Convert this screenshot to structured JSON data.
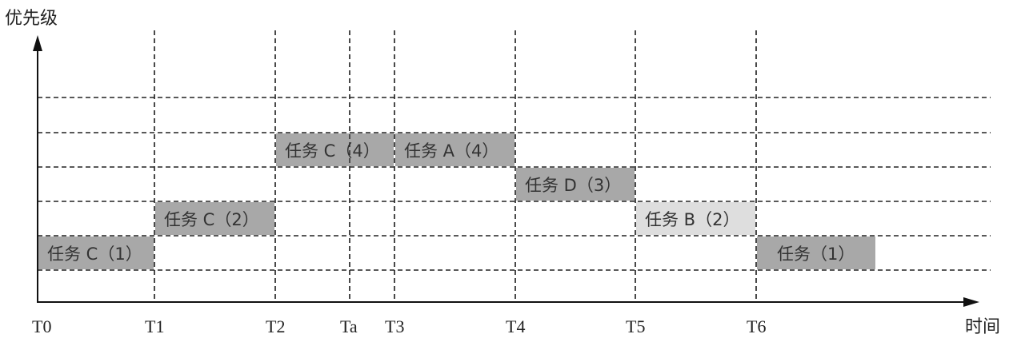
{
  "y_axis_title": "优先级",
  "x_axis_title": "时间",
  "time_marks": [
    "T0",
    "T1",
    "T2",
    "Ta",
    "T3",
    "T4",
    "T5",
    "T6"
  ],
  "tasks": [
    {
      "label": "任务 C（1）",
      "start": "T0",
      "end": "T1",
      "level": 1,
      "color": "#a8a8a8"
    },
    {
      "label": "任务 C（2）",
      "start": "T1",
      "end": "T2",
      "level": 2,
      "color": "#a8a8a8"
    },
    {
      "label": "任务 C（4）",
      "start": "T2",
      "end": "T3",
      "level": 4,
      "color": "#a8a8a8"
    },
    {
      "label": "任务 A（4）",
      "start": "T3",
      "end": "T4",
      "level": 4,
      "color": "#a8a8a8"
    },
    {
      "label": "任务 D（3）",
      "start": "T4",
      "end": "T5",
      "level": 3,
      "color": "#a8a8a8"
    },
    {
      "label": "任务 B（2）",
      "start": "T5",
      "end": "T6",
      "level": 2,
      "color": "#dedede"
    },
    {
      "label": "任务（1）",
      "start": "T6",
      "end": "",
      "level": 1,
      "color": "#a8a8a8"
    }
  ]
}
